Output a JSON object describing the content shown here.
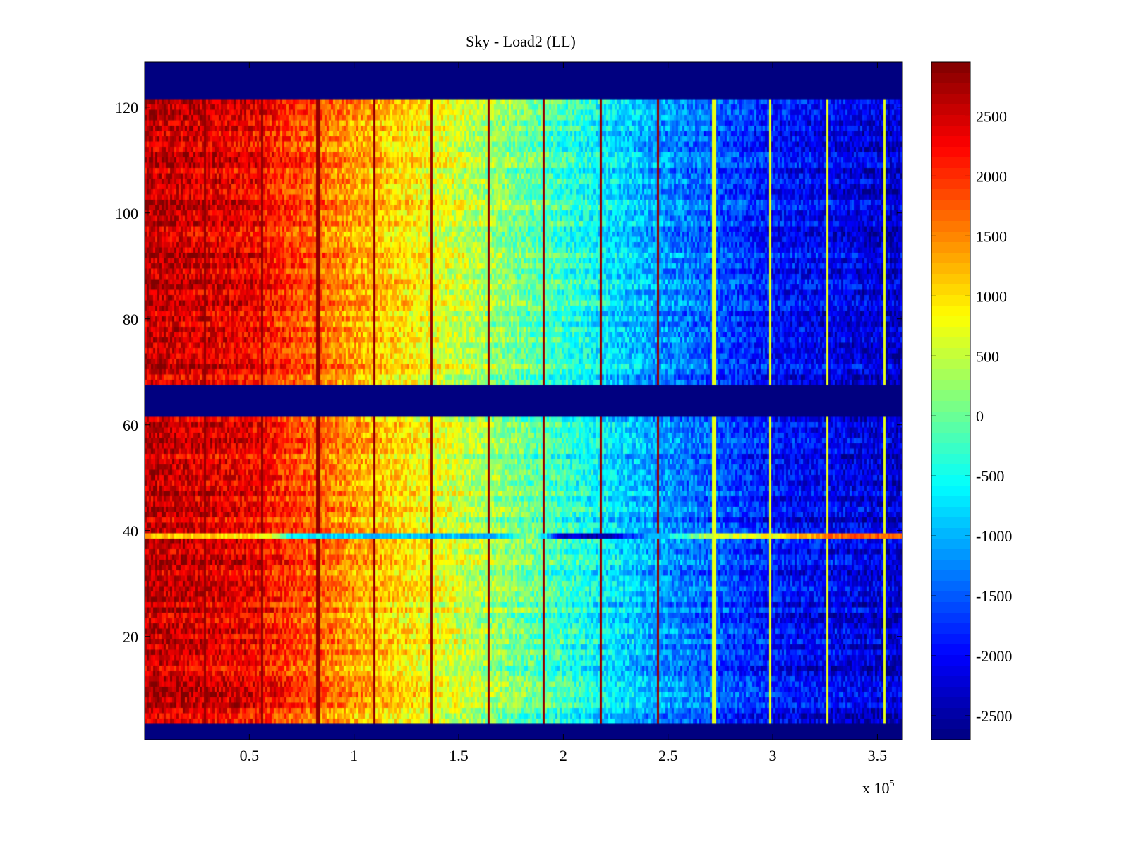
{
  "chart_data": {
    "type": "heatmap",
    "title": "Sky - Load2 (LL)",
    "xlabel": "",
    "ylabel": "",
    "x_exponent_label": "x 10",
    "x_exponent_sup": "5",
    "xlim": [
      0,
      3.62
    ],
    "ylim": [
      0.5,
      128.5
    ],
    "xticks": [
      0.5,
      1,
      1.5,
      2,
      2.5,
      3,
      3.5
    ],
    "xtick_labels": [
      "0.5",
      "1",
      "1.5",
      "2",
      "2.5",
      "3",
      "3.5"
    ],
    "yticks": [
      20,
      40,
      60,
      80,
      100,
      120
    ],
    "ytick_labels": [
      "20",
      "40",
      "60",
      "80",
      "100",
      "120"
    ],
    "colormap": "jet",
    "clim": [
      -2700,
      2950
    ],
    "colorbar_ticks": [
      2500,
      2000,
      1500,
      1000,
      500,
      0,
      -500,
      -1000,
      -1500,
      -2000,
      -2500
    ],
    "colorbar_tick_labels": [
      "2500",
      "2000",
      "1500",
      "1000",
      "500",
      "0",
      "-500",
      "-1000",
      "-1500",
      "-2000",
      "-2500"
    ],
    "masked_rows": [
      [
        1,
        3
      ],
      [
        62,
        67
      ],
      [
        122,
        128
      ]
    ],
    "masked_value": -2700,
    "column_gradient": [
      {
        "x": 0.0,
        "value": 2600
      },
      {
        "x": 0.5,
        "value": 2300
      },
      {
        "x": 1.0,
        "value": 1350
      },
      {
        "x": 1.5,
        "value": 550
      },
      {
        "x": 2.0,
        "value": -300
      },
      {
        "x": 2.5,
        "value": -1200
      },
      {
        "x": 3.0,
        "value": -1900
      },
      {
        "x": 3.5,
        "value": -2200
      },
      {
        "x": 3.62,
        "value": -2300
      }
    ],
    "hot_stripes_x": [
      0.29,
      0.56,
      0.83,
      1.1,
      1.37,
      1.64,
      1.91,
      2.18,
      2.45
    ],
    "bright_stripes_x": [
      2.72,
      2.99,
      3.26,
      3.53
    ],
    "anomalous_row": {
      "y": 39,
      "values": [
        {
          "x": 0.0,
          "value": 1200
        },
        {
          "x": 0.6,
          "value": 900
        },
        {
          "x": 0.7,
          "value": -700
        },
        {
          "x": 1.2,
          "value": -900
        },
        {
          "x": 1.7,
          "value": -900
        },
        {
          "x": 1.85,
          "value": 300
        },
        {
          "x": 2.0,
          "value": -2300
        },
        {
          "x": 2.2,
          "value": -2400
        },
        {
          "x": 2.7,
          "value": 500
        },
        {
          "x": 3.0,
          "value": 800
        },
        {
          "x": 3.3,
          "value": 1700
        },
        {
          "x": 3.62,
          "value": 1800
        }
      ]
    }
  }
}
